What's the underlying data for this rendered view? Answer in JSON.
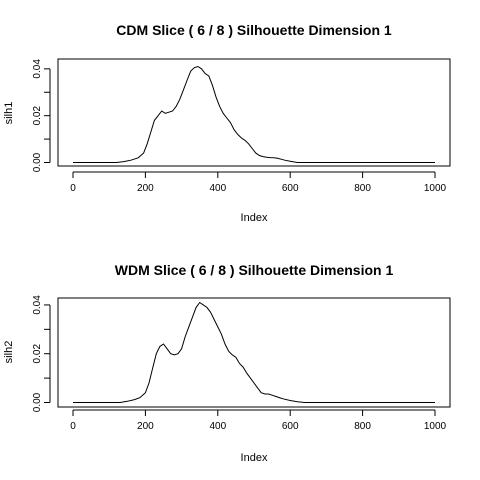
{
  "chart_data": [
    {
      "type": "line",
      "title": "CDM Slice ( 6 / 8 )  Silhouette Dimension 1",
      "xlabel": "Index",
      "ylabel": "silh1",
      "xlim": [
        0,
        1000
      ],
      "ylim": [
        0,
        0.041
      ],
      "x_ticks": [
        0,
        200,
        400,
        600,
        800,
        1000
      ],
      "x_tick_labels": [
        "0",
        "200",
        "400",
        "600",
        "800",
        "1000"
      ],
      "y_ticks": [
        0.0,
        0.01,
        0.02,
        0.03,
        0.04
      ],
      "y_tick_labels": [
        "0.00",
        "",
        "0.02",
        "",
        "0.04"
      ],
      "grid": false,
      "series": [
        {
          "x": [
            0,
            120,
            140,
            160,
            180,
            195,
            205,
            215,
            225,
            235,
            245,
            255,
            265,
            275,
            285,
            295,
            305,
            315,
            325,
            335,
            345,
            355,
            365,
            375,
            385,
            395,
            405,
            415,
            425,
            435,
            445,
            455,
            465,
            475,
            485,
            495,
            505,
            515,
            525,
            535,
            545,
            555,
            565,
            575,
            585,
            600,
            620,
            700,
            800,
            900,
            1000
          ],
          "y": [
            0.0,
            0.0,
            0.0004,
            0.001,
            0.002,
            0.004,
            0.008,
            0.013,
            0.018,
            0.02,
            0.022,
            0.021,
            0.0215,
            0.022,
            0.024,
            0.027,
            0.031,
            0.035,
            0.039,
            0.0405,
            0.041,
            0.04,
            0.038,
            0.037,
            0.033,
            0.028,
            0.024,
            0.021,
            0.019,
            0.017,
            0.014,
            0.012,
            0.0105,
            0.0095,
            0.008,
            0.006,
            0.004,
            0.003,
            0.0025,
            0.0022,
            0.0021,
            0.002,
            0.0018,
            0.0014,
            0.001,
            0.0005,
            0.0,
            0.0,
            0.0,
            0.0,
            0.0
          ]
        }
      ]
    },
    {
      "type": "line",
      "title": "WDM Slice ( 6 / 8 )  Silhouette Dimension 1",
      "xlabel": "Index",
      "ylabel": "silh2",
      "xlim": [
        0,
        1000
      ],
      "ylim": [
        0,
        0.041
      ],
      "x_ticks": [
        0,
        200,
        400,
        600,
        800,
        1000
      ],
      "x_tick_labels": [
        "0",
        "200",
        "400",
        "600",
        "800",
        "1000"
      ],
      "y_ticks": [
        0.0,
        0.01,
        0.02,
        0.03,
        0.04
      ],
      "y_tick_labels": [
        "0.00",
        "",
        "0.02",
        "",
        "0.04"
      ],
      "grid": false,
      "series": [
        {
          "x": [
            0,
            130,
            150,
            170,
            185,
            200,
            210,
            220,
            230,
            240,
            250,
            260,
            270,
            280,
            290,
            300,
            310,
            320,
            330,
            340,
            350,
            360,
            370,
            380,
            390,
            400,
            410,
            420,
            430,
            440,
            450,
            460,
            470,
            480,
            490,
            500,
            510,
            520,
            530,
            540,
            550,
            560,
            570,
            580,
            600,
            620,
            640,
            700,
            800,
            900,
            1000
          ],
          "y": [
            0.0,
            0.0,
            0.0005,
            0.0012,
            0.002,
            0.004,
            0.008,
            0.014,
            0.02,
            0.023,
            0.024,
            0.022,
            0.02,
            0.0195,
            0.02,
            0.022,
            0.027,
            0.031,
            0.035,
            0.039,
            0.041,
            0.04,
            0.039,
            0.037,
            0.034,
            0.031,
            0.028,
            0.024,
            0.021,
            0.0195,
            0.0185,
            0.016,
            0.0145,
            0.012,
            0.01,
            0.008,
            0.006,
            0.004,
            0.0035,
            0.0035,
            0.003,
            0.0025,
            0.002,
            0.0015,
            0.0008,
            0.0003,
            0.0,
            0.0,
            0.0,
            0.0,
            0.0
          ]
        }
      ]
    }
  ]
}
